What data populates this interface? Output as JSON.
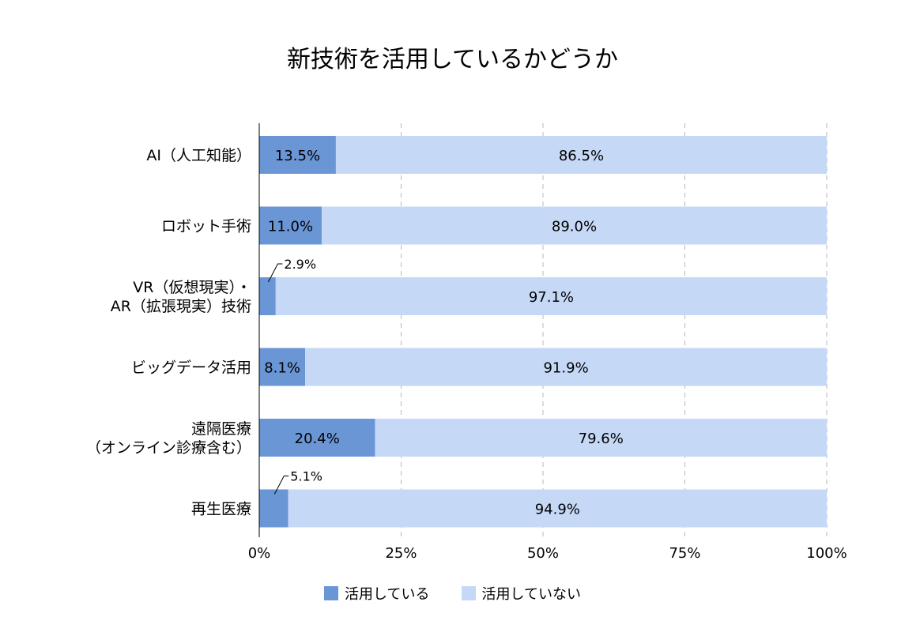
{
  "chart_data": {
    "type": "bar",
    "orientation": "horizontal",
    "stacked": true,
    "title": "新技術を活用しているかどうか",
    "categories": [
      [
        "AI（人工知能）"
      ],
      [
        "ロボット手術"
      ],
      [
        "VR（仮想現実）・",
        "AR（拡張現実）技術"
      ],
      [
        "ビッグデータ活用"
      ],
      [
        "遠隔医療",
        "（オンライン診療含む）"
      ],
      [
        "再生医療"
      ]
    ],
    "series": [
      {
        "name": "活用している",
        "values": [
          13.5,
          11.0,
          2.9,
          8.1,
          20.4,
          5.1
        ],
        "labels": [
          "13.5%",
          "11.0%",
          "2.9%",
          "8.1%",
          "20.4%",
          "5.1%"
        ],
        "color": "#6a96d6"
      },
      {
        "name": "活用していない",
        "values": [
          86.5,
          89.0,
          97.1,
          91.9,
          79.6,
          94.9
        ],
        "labels": [
          "86.5%",
          "89.0%",
          "97.1%",
          "91.9%",
          "79.6%",
          "94.9%"
        ],
        "color": "#c5d8f6"
      }
    ],
    "xlim": [
      0,
      100
    ],
    "xticks": [
      "0%",
      "25%",
      "50%",
      "75%",
      "100%"
    ],
    "xtick_values": [
      0,
      25,
      50,
      75,
      100
    ],
    "grid": true,
    "legend": "bottom",
    "callouts": [
      2,
      5
    ]
  }
}
